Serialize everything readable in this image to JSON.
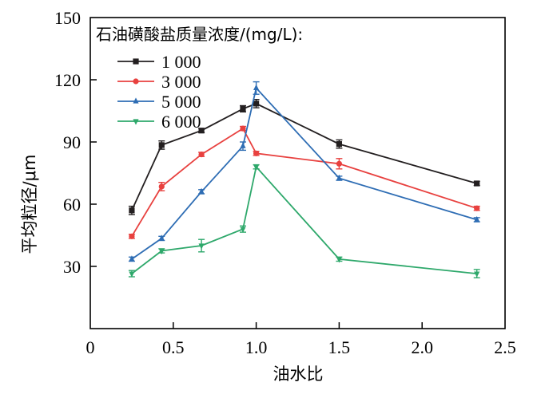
{
  "chart_data": {
    "type": "line",
    "xlabel": "油水比",
    "ylabel": "平均粒径/μm",
    "xlim": [
      0,
      2.5
    ],
    "ylim": [
      0,
      150
    ],
    "x_ticks": [
      0,
      0.5,
      1.0,
      1.5,
      2.0,
      2.5
    ],
    "x_tick_labels": [
      "0",
      "0.5",
      "1.0",
      "1.5",
      "2.0",
      "2.5"
    ],
    "y_ticks": [
      30,
      60,
      90,
      120,
      150
    ],
    "y_tick_labels": [
      "30",
      "60",
      "90",
      "120",
      "150"
    ],
    "grid": false,
    "legend": {
      "title": "石油磺酸盐质量浓度/(mg/L):",
      "position": "top-left"
    },
    "x": [
      0.25,
      0.43,
      0.67,
      0.92,
      1.0,
      1.5,
      2.33
    ],
    "series": [
      {
        "name": "1 000",
        "color": "#231f20",
        "marker": "square",
        "values": [
          57,
          88.5,
          95.5,
          106,
          108.5,
          89,
          70
        ],
        "errors": [
          2,
          2,
          1,
          1.5,
          2,
          2,
          1
        ]
      },
      {
        "name": "3 000",
        "color": "#e8413f",
        "marker": "circle",
        "values": [
          44.5,
          68.5,
          84,
          96.5,
          84.5,
          79.5,
          58
        ],
        "errors": [
          1,
          2,
          1,
          1,
          1,
          2.5,
          1
        ]
      },
      {
        "name": "5 000",
        "color": "#2e6db4",
        "marker": "triangle-up",
        "values": [
          33.5,
          43.5,
          66,
          88,
          116,
          72.5,
          52.5
        ],
        "errors": [
          1,
          1,
          1,
          2,
          3,
          1,
          1
        ]
      },
      {
        "name": "6 000",
        "color": "#2ea86b",
        "marker": "triangle-down",
        "values": [
          26.5,
          37.5,
          40,
          48,
          78,
          33.5,
          26.5
        ],
        "errors": [
          1.5,
          1,
          3,
          1.5,
          1,
          1,
          2
        ]
      }
    ]
  }
}
